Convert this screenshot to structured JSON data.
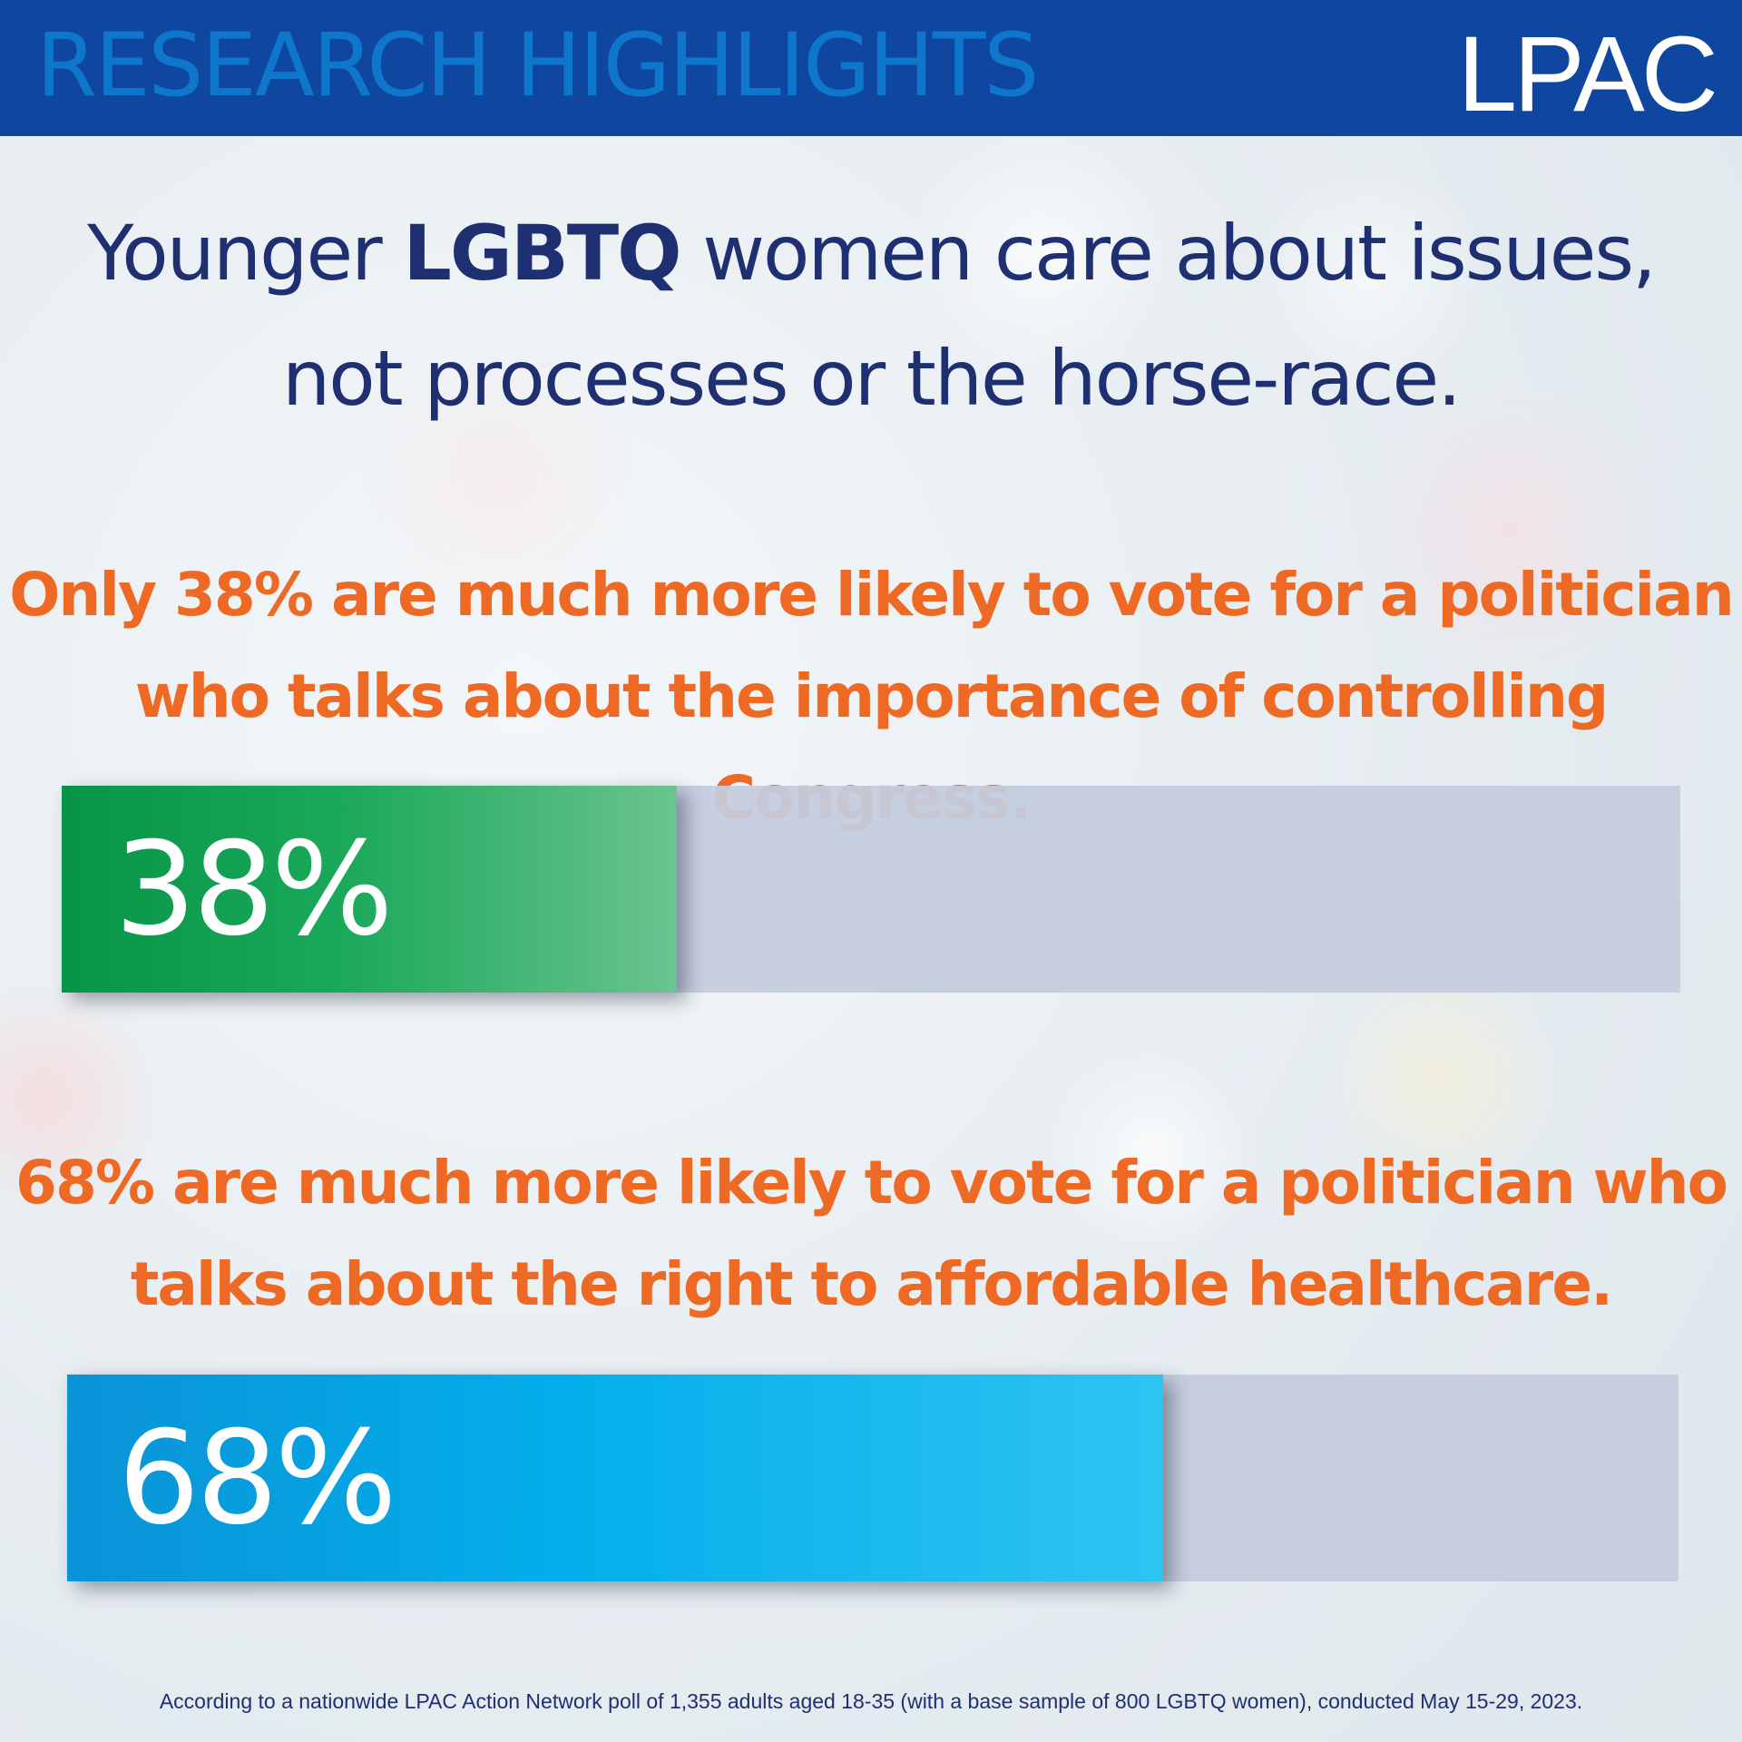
{
  "header": {
    "title": "RESEARCH HIGHLIGHTS",
    "logo": "LPAC"
  },
  "headline": {
    "part1": "Younger ",
    "emphasis": "LGBTQ",
    "part2": " women care about issues,",
    "line2": "not processes or the horse-race."
  },
  "stats": [
    {
      "line1": "Only 38% are much more likely to vote for a politician",
      "line2": "who talks about the importance of controlling Congress.",
      "label": "38%",
      "value": 0.38,
      "color": "#079447"
    },
    {
      "line1": "68% are much more likely to vote for a politician who",
      "line2": "talks about the right to affordable healthcare.",
      "label": "68%",
      "value": 0.68,
      "color": "#03aeea"
    }
  ],
  "footnote": "According to a nationwide LPAC Action Network poll of 1,355 adults aged 18-35 (with a base sample of 800 LGBTQ women), conducted May 15-29, 2023.",
  "colors": {
    "header_bg": "#0f46a0",
    "header_text": "#0e77cc",
    "headline": "#1e2f72",
    "stat_text": "#ee6a24",
    "track": "#c4ccde"
  }
}
